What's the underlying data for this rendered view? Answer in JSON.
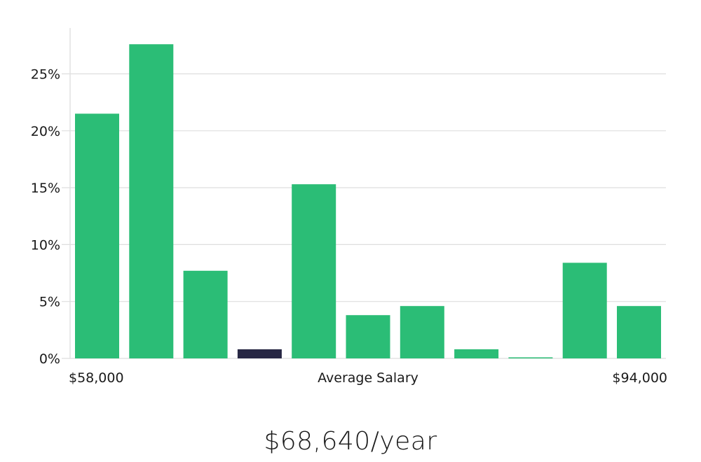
{
  "chart_data": {
    "type": "bar",
    "title": "",
    "xlabel": "Average Salary",
    "ylabel": "",
    "x_range_labels": {
      "min": "$58,000",
      "max": "$94,000"
    },
    "ylim": [
      0,
      28
    ],
    "y_ticks": [
      0,
      5,
      10,
      15,
      20,
      25
    ],
    "y_tick_labels": [
      "0%",
      "5%",
      "10%",
      "15%",
      "20%",
      "25%"
    ],
    "grid": true,
    "values": [
      21.5,
      27.6,
      7.7,
      0.8,
      15.3,
      3.8,
      4.6,
      0.8,
      0.05,
      8.4,
      4.6
    ],
    "highlight_index": 3,
    "colors": {
      "bar": "#2bbd76",
      "highlight": "#272744",
      "grid": "#dedede",
      "axis": "#e2e2e2"
    }
  },
  "summary": {
    "salary": "$68,640/year"
  }
}
